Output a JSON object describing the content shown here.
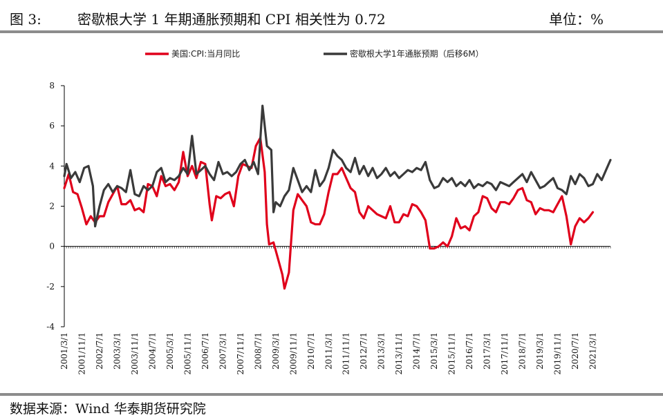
{
  "header": {
    "fig_label": "图 3:",
    "title": "密歇根大学 1 年期通胀预期和 CPI 相关性为 0.72",
    "unit": "单位：%"
  },
  "footer": {
    "source": "数据来源：Wind  华泰期货研究院"
  },
  "chart_data": {
    "type": "line",
    "title": "",
    "xlabel": "",
    "ylabel": "",
    "ylim": [
      -4,
      8
    ],
    "y_ticks": [
      -4,
      -2,
      0,
      2,
      4,
      6,
      8
    ],
    "x_range": [
      "2001-03",
      "2021-11"
    ],
    "x_tick_labels": [
      "2001/3/1",
      "2001/11/1",
      "2002/7/1",
      "2003/3/1",
      "2003/11/1",
      "2004/7/1",
      "2005/3/1",
      "2005/11/1",
      "2006/7/1",
      "2007/3/1",
      "2007/11/1",
      "2008/7/1",
      "2009/3/1",
      "2009/11/1",
      "2010/7/1",
      "2011/3/1",
      "2011/11/1",
      "2012/7/1",
      "2013/3/1",
      "2013/11/1",
      "2014/7/1",
      "2015/3/1",
      "2015/11/1",
      "2016/7/1",
      "2017/3/1",
      "2017/11/1",
      "2018/7/1",
      "2019/3/1",
      "2019/11/1",
      "2020/7/1",
      "2021/3/1"
    ],
    "grid": false,
    "legend_position": "top",
    "series": [
      {
        "name": "美国:CPI:当月同比",
        "color": "#e0001b",
        "points": [
          [
            "2001-03",
            2.9
          ],
          [
            "2001-05",
            3.6
          ],
          [
            "2001-07",
            2.7
          ],
          [
            "2001-09",
            2.6
          ],
          [
            "2001-11",
            1.9
          ],
          [
            "2002-01",
            1.1
          ],
          [
            "2002-03",
            1.5
          ],
          [
            "2002-05",
            1.2
          ],
          [
            "2002-07",
            1.5
          ],
          [
            "2002-09",
            1.5
          ],
          [
            "2002-11",
            2.2
          ],
          [
            "2003-01",
            2.6
          ],
          [
            "2003-03",
            3.0
          ],
          [
            "2003-05",
            2.1
          ],
          [
            "2003-07",
            2.1
          ],
          [
            "2003-09",
            2.3
          ],
          [
            "2003-11",
            1.8
          ],
          [
            "2004-01",
            1.9
          ],
          [
            "2004-03",
            1.7
          ],
          [
            "2004-05",
            3.1
          ],
          [
            "2004-07",
            3.0
          ],
          [
            "2004-09",
            2.5
          ],
          [
            "2004-11",
            3.5
          ],
          [
            "2005-01",
            3.0
          ],
          [
            "2005-03",
            3.1
          ],
          [
            "2005-05",
            2.8
          ],
          [
            "2005-07",
            3.2
          ],
          [
            "2005-09",
            4.7
          ],
          [
            "2005-11",
            3.5
          ],
          [
            "2006-01",
            4.0
          ],
          [
            "2006-03",
            3.4
          ],
          [
            "2006-05",
            4.2
          ],
          [
            "2006-07",
            4.1
          ],
          [
            "2006-09",
            2.1
          ],
          [
            "2006-10",
            1.3
          ],
          [
            "2006-12",
            2.5
          ],
          [
            "2007-02",
            2.4
          ],
          [
            "2007-04",
            2.6
          ],
          [
            "2007-06",
            2.7
          ],
          [
            "2007-08",
            2.0
          ],
          [
            "2007-10",
            3.5
          ],
          [
            "2007-12",
            4.1
          ],
          [
            "2008-02",
            4.0
          ],
          [
            "2008-04",
            3.9
          ],
          [
            "2008-06",
            5.0
          ],
          [
            "2008-08",
            5.4
          ],
          [
            "2008-10",
            3.7
          ],
          [
            "2008-11",
            1.1
          ],
          [
            "2008-12",
            0.1
          ],
          [
            "2009-02",
            0.2
          ],
          [
            "2009-04",
            -0.6
          ],
          [
            "2009-06",
            -1.4
          ],
          [
            "2009-07",
            -2.1
          ],
          [
            "2009-09",
            -1.3
          ],
          [
            "2009-11",
            1.8
          ],
          [
            "2010-01",
            2.6
          ],
          [
            "2010-03",
            2.3
          ],
          [
            "2010-05",
            2.0
          ],
          [
            "2010-07",
            1.2
          ],
          [
            "2010-09",
            1.1
          ],
          [
            "2010-11",
            1.1
          ],
          [
            "2011-01",
            1.6
          ],
          [
            "2011-03",
            2.7
          ],
          [
            "2011-05",
            3.6
          ],
          [
            "2011-07",
            3.6
          ],
          [
            "2011-09",
            3.9
          ],
          [
            "2011-11",
            3.4
          ],
          [
            "2012-01",
            2.9
          ],
          [
            "2012-03",
            2.7
          ],
          [
            "2012-05",
            1.7
          ],
          [
            "2012-07",
            1.4
          ],
          [
            "2012-09",
            2.0
          ],
          [
            "2012-11",
            1.8
          ],
          [
            "2013-01",
            1.6
          ],
          [
            "2013-03",
            1.5
          ],
          [
            "2013-05",
            1.4
          ],
          [
            "2013-07",
            2.0
          ],
          [
            "2013-09",
            1.2
          ],
          [
            "2013-11",
            1.2
          ],
          [
            "2014-01",
            1.6
          ],
          [
            "2014-03",
            1.5
          ],
          [
            "2014-05",
            2.1
          ],
          [
            "2014-07",
            2.0
          ],
          [
            "2014-09",
            1.7
          ],
          [
            "2014-11",
            1.3
          ],
          [
            "2015-01",
            -0.1
          ],
          [
            "2015-03",
            -0.1
          ],
          [
            "2015-05",
            0.0
          ],
          [
            "2015-07",
            0.2
          ],
          [
            "2015-09",
            0.0
          ],
          [
            "2015-11",
            0.5
          ],
          [
            "2016-01",
            1.4
          ],
          [
            "2016-03",
            0.9
          ],
          [
            "2016-05",
            1.0
          ],
          [
            "2016-07",
            0.8
          ],
          [
            "2016-09",
            1.5
          ],
          [
            "2016-11",
            1.7
          ],
          [
            "2017-01",
            2.5
          ],
          [
            "2017-03",
            2.4
          ],
          [
            "2017-05",
            1.9
          ],
          [
            "2017-07",
            1.7
          ],
          [
            "2017-09",
            2.2
          ],
          [
            "2017-11",
            2.2
          ],
          [
            "2018-01",
            2.1
          ],
          [
            "2018-03",
            2.4
          ],
          [
            "2018-05",
            2.8
          ],
          [
            "2018-07",
            2.9
          ],
          [
            "2018-09",
            2.3
          ],
          [
            "2018-11",
            2.2
          ],
          [
            "2019-01",
            1.6
          ],
          [
            "2019-03",
            1.9
          ],
          [
            "2019-05",
            1.8
          ],
          [
            "2019-07",
            1.8
          ],
          [
            "2019-09",
            1.7
          ],
          [
            "2019-11",
            2.1
          ],
          [
            "2020-01",
            2.5
          ],
          [
            "2020-03",
            1.5
          ],
          [
            "2020-05",
            0.1
          ],
          [
            "2020-07",
            1.0
          ],
          [
            "2020-09",
            1.4
          ],
          [
            "2020-11",
            1.2
          ],
          [
            "2021-01",
            1.4
          ],
          [
            "2021-03",
            1.7
          ]
        ]
      },
      {
        "name": "密歇根大学1年通胀预期（后移6M）",
        "color": "#3a3a3a",
        "points": [
          [
            "2001-03",
            3.5
          ],
          [
            "2001-04",
            4.1
          ],
          [
            "2001-06",
            3.4
          ],
          [
            "2001-08",
            3.7
          ],
          [
            "2001-10",
            3.2
          ],
          [
            "2001-12",
            3.9
          ],
          [
            "2002-02",
            4.0
          ],
          [
            "2002-04",
            3.0
          ],
          [
            "2002-05",
            1.0
          ],
          [
            "2002-07",
            2.0
          ],
          [
            "2002-09",
            2.8
          ],
          [
            "2002-11",
            3.1
          ],
          [
            "2003-01",
            2.7
          ],
          [
            "2003-03",
            3.0
          ],
          [
            "2003-05",
            2.9
          ],
          [
            "2003-07",
            2.7
          ],
          [
            "2003-09",
            3.8
          ],
          [
            "2003-11",
            2.6
          ],
          [
            "2004-01",
            2.5
          ],
          [
            "2004-03",
            3.0
          ],
          [
            "2004-05",
            2.8
          ],
          [
            "2004-07",
            3.0
          ],
          [
            "2004-09",
            3.7
          ],
          [
            "2004-11",
            3.9
          ],
          [
            "2005-01",
            3.2
          ],
          [
            "2005-03",
            3.4
          ],
          [
            "2005-05",
            3.3
          ],
          [
            "2005-07",
            3.5
          ],
          [
            "2005-09",
            3.9
          ],
          [
            "2005-11",
            3.6
          ],
          [
            "2006-01",
            5.5
          ],
          [
            "2006-03",
            3.6
          ],
          [
            "2006-05",
            3.8
          ],
          [
            "2006-07",
            4.0
          ],
          [
            "2006-09",
            3.6
          ],
          [
            "2006-11",
            3.3
          ],
          [
            "2007-01",
            4.2
          ],
          [
            "2007-03",
            3.6
          ],
          [
            "2007-05",
            3.7
          ],
          [
            "2007-07",
            3.5
          ],
          [
            "2007-09",
            3.7
          ],
          [
            "2007-11",
            4.1
          ],
          [
            "2008-01",
            4.3
          ],
          [
            "2008-03",
            3.8
          ],
          [
            "2008-05",
            4.2
          ],
          [
            "2008-07",
            3.6
          ],
          [
            "2008-09",
            7.0
          ],
          [
            "2008-11",
            5.0
          ],
          [
            "2009-01",
            4.8
          ],
          [
            "2009-02",
            1.7
          ],
          [
            "2009-03",
            2.2
          ],
          [
            "2009-05",
            2.0
          ],
          [
            "2009-07",
            2.5
          ],
          [
            "2009-09",
            2.8
          ],
          [
            "2009-11",
            3.9
          ],
          [
            "2010-01",
            3.3
          ],
          [
            "2010-03",
            2.7
          ],
          [
            "2010-05",
            3.0
          ],
          [
            "2010-07",
            2.7
          ],
          [
            "2010-09",
            3.8
          ],
          [
            "2010-11",
            3.0
          ],
          [
            "2011-01",
            3.3
          ],
          [
            "2011-03",
            3.9
          ],
          [
            "2011-05",
            4.8
          ],
          [
            "2011-07",
            4.5
          ],
          [
            "2011-09",
            4.3
          ],
          [
            "2011-11",
            3.9
          ],
          [
            "2012-01",
            3.7
          ],
          [
            "2012-03",
            4.4
          ],
          [
            "2012-05",
            3.6
          ],
          [
            "2012-07",
            4.0
          ],
          [
            "2012-09",
            3.5
          ],
          [
            "2012-11",
            3.9
          ],
          [
            "2013-01",
            3.4
          ],
          [
            "2013-03",
            3.6
          ],
          [
            "2013-05",
            3.9
          ],
          [
            "2013-07",
            3.5
          ],
          [
            "2013-09",
            3.7
          ],
          [
            "2013-11",
            3.4
          ],
          [
            "2014-01",
            3.6
          ],
          [
            "2014-03",
            3.8
          ],
          [
            "2014-05",
            3.7
          ],
          [
            "2014-07",
            3.9
          ],
          [
            "2014-09",
            3.8
          ],
          [
            "2014-11",
            4.2
          ],
          [
            "2015-01",
            3.3
          ],
          [
            "2015-03",
            2.9
          ],
          [
            "2015-05",
            3.0
          ],
          [
            "2015-07",
            3.4
          ],
          [
            "2015-09",
            3.2
          ],
          [
            "2015-11",
            3.4
          ],
          [
            "2016-01",
            3.0
          ],
          [
            "2016-03",
            3.2
          ],
          [
            "2016-05",
            3.0
          ],
          [
            "2016-07",
            3.3
          ],
          [
            "2016-09",
            2.9
          ],
          [
            "2016-11",
            3.1
          ],
          [
            "2017-01",
            3.0
          ],
          [
            "2017-03",
            3.2
          ],
          [
            "2017-05",
            3.1
          ],
          [
            "2017-07",
            2.8
          ],
          [
            "2017-09",
            3.2
          ],
          [
            "2017-11",
            3.1
          ],
          [
            "2018-01",
            3.0
          ],
          [
            "2018-03",
            3.2
          ],
          [
            "2018-05",
            3.4
          ],
          [
            "2018-07",
            3.6
          ],
          [
            "2018-09",
            3.2
          ],
          [
            "2018-11",
            3.7
          ],
          [
            "2019-01",
            3.3
          ],
          [
            "2019-03",
            2.9
          ],
          [
            "2019-05",
            3.0
          ],
          [
            "2019-07",
            3.2
          ],
          [
            "2019-09",
            3.4
          ],
          [
            "2019-11",
            2.9
          ],
          [
            "2020-01",
            2.8
          ],
          [
            "2020-03",
            2.6
          ],
          [
            "2020-05",
            3.5
          ],
          [
            "2020-07",
            3.1
          ],
          [
            "2020-09",
            3.6
          ],
          [
            "2020-11",
            3.4
          ],
          [
            "2021-01",
            3.0
          ],
          [
            "2021-03",
            3.1
          ],
          [
            "2021-05",
            3.6
          ],
          [
            "2021-07",
            3.3
          ],
          [
            "2021-09",
            3.8
          ],
          [
            "2021-11",
            4.3
          ]
        ]
      }
    ]
  }
}
